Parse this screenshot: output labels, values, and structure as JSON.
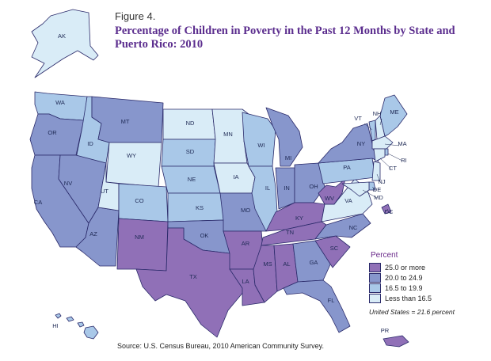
{
  "figure_label": "Figure 4.",
  "title": "Percentage of Children in Poverty in the Past 12 Months by State and Puerto Rico: 2010",
  "colors": {
    "cat1": "#9070b7",
    "cat2": "#8796cc",
    "cat3": "#a9c8e8",
    "cat4": "#d9ecf7",
    "outline": "#2a2a6a"
  },
  "legend": {
    "title": "Percent",
    "items": [
      {
        "label": "25.0 or more",
        "category": "cat1"
      },
      {
        "label": "20.0 to 24.9",
        "category": "cat2"
      },
      {
        "label": "16.5 to 19.9",
        "category": "cat3"
      },
      {
        "label": "Less than 16.5",
        "category": "cat4"
      }
    ]
  },
  "us_note": "United States = 21.6 percent",
  "source": "Source: U.S. Census Bureau, 2010 American Community Survey.",
  "states": [
    {
      "abbr": "AK",
      "category": "cat4"
    },
    {
      "abbr": "HI",
      "category": "cat3"
    },
    {
      "abbr": "WA",
      "category": "cat3"
    },
    {
      "abbr": "OR",
      "category": "cat2"
    },
    {
      "abbr": "CA",
      "category": "cat2"
    },
    {
      "abbr": "ID",
      "category": "cat3"
    },
    {
      "abbr": "NV",
      "category": "cat2"
    },
    {
      "abbr": "AZ",
      "category": "cat2"
    },
    {
      "abbr": "MT",
      "category": "cat2"
    },
    {
      "abbr": "WY",
      "category": "cat4"
    },
    {
      "abbr": "UT",
      "category": "cat4"
    },
    {
      "abbr": "CO",
      "category": "cat3"
    },
    {
      "abbr": "NM",
      "category": "cat1"
    },
    {
      "abbr": "ND",
      "category": "cat4"
    },
    {
      "abbr": "SD",
      "category": "cat3"
    },
    {
      "abbr": "NE",
      "category": "cat3"
    },
    {
      "abbr": "KS",
      "category": "cat3"
    },
    {
      "abbr": "OK",
      "category": "cat2"
    },
    {
      "abbr": "TX",
      "category": "cat1"
    },
    {
      "abbr": "MN",
      "category": "cat4"
    },
    {
      "abbr": "IA",
      "category": "cat4"
    },
    {
      "abbr": "MO",
      "category": "cat2"
    },
    {
      "abbr": "AR",
      "category": "cat1"
    },
    {
      "abbr": "LA",
      "category": "cat1"
    },
    {
      "abbr": "WI",
      "category": "cat3"
    },
    {
      "abbr": "IL",
      "category": "cat3"
    },
    {
      "abbr": "MI",
      "category": "cat2"
    },
    {
      "abbr": "IN",
      "category": "cat2"
    },
    {
      "abbr": "OH",
      "category": "cat2"
    },
    {
      "abbr": "KY",
      "category": "cat1"
    },
    {
      "abbr": "TN",
      "category": "cat1"
    },
    {
      "abbr": "MS",
      "category": "cat1"
    },
    {
      "abbr": "AL",
      "category": "cat1"
    },
    {
      "abbr": "GA",
      "category": "cat2"
    },
    {
      "abbr": "FL",
      "category": "cat2"
    },
    {
      "abbr": "SC",
      "category": "cat1"
    },
    {
      "abbr": "NC",
      "category": "cat2"
    },
    {
      "abbr": "VA",
      "category": "cat4"
    },
    {
      "abbr": "WV",
      "category": "cat1"
    },
    {
      "abbr": "PA",
      "category": "cat3"
    },
    {
      "abbr": "NY",
      "category": "cat2"
    },
    {
      "abbr": "VT",
      "category": "cat3"
    },
    {
      "abbr": "NH",
      "category": "cat4"
    },
    {
      "abbr": "ME",
      "category": "cat3"
    },
    {
      "abbr": "MA",
      "category": "cat4"
    },
    {
      "abbr": "RI",
      "category": "cat3"
    },
    {
      "abbr": "CT",
      "category": "cat4"
    },
    {
      "abbr": "NJ",
      "category": "cat4"
    },
    {
      "abbr": "DE",
      "category": "cat3"
    },
    {
      "abbr": "MD",
      "category": "cat4"
    },
    {
      "abbr": "DC",
      "category": "cat1"
    },
    {
      "abbr": "PR",
      "category": "cat1"
    }
  ]
}
